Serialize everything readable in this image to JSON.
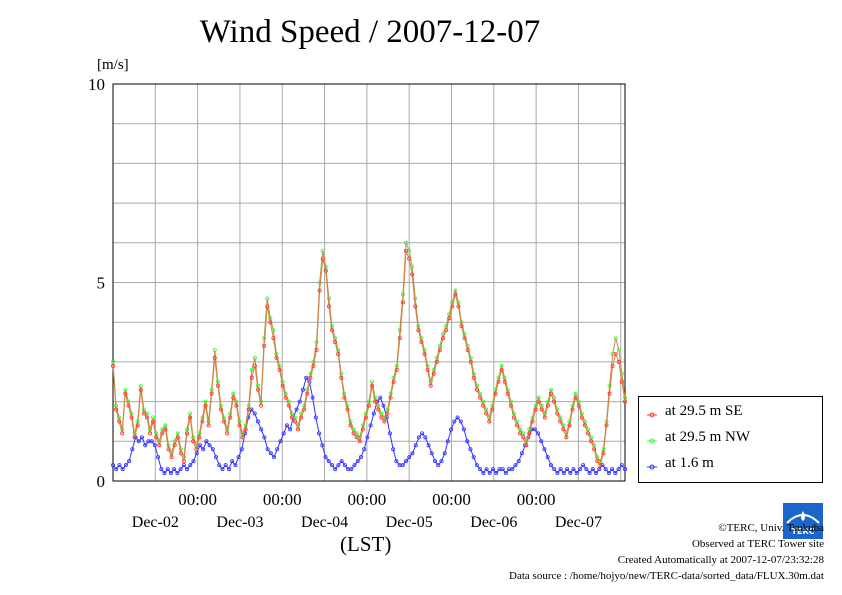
{
  "title": "Wind Speed / 2007-12-07",
  "unit": "[m/s]",
  "xlabel": "(LST)",
  "legend": [
    {
      "label": "at 29.5 m SE",
      "color": "#ff3333"
    },
    {
      "label": "at 29.5 m NW",
      "color": "#33ff33"
    },
    {
      "label": "at 1.6 m",
      "color": "#3333ff"
    }
  ],
  "credits": {
    "copyright": "©TERC, Univ. Tsukuba",
    "site": "Observed at TERC Tower site",
    "created": "Created Automatically at 2007-12-07/23:32:28",
    "source": "Data source : /home/hojyo/new/TERC-data/sorted_data/FLUX.30m.dat"
  },
  "logo_text": "TERC",
  "chart_data": {
    "type": "line",
    "ylim": [
      0,
      10
    ],
    "yticks": [
      0,
      5,
      10
    ],
    "x_time_labels": [
      "00:00",
      "00:00",
      "00:00",
      "00:00",
      "00:00"
    ],
    "x_date_labels": [
      "Dec-02",
      "Dec-03",
      "Dec-04",
      "Dec-05",
      "Dec-06",
      "Dec-07"
    ],
    "x_range_days": [
      0,
      6.05
    ],
    "series": [
      {
        "name": "at 29.5 m SE",
        "color": "#ff3333",
        "values": [
          2.9,
          1.8,
          1.5,
          1.2,
          2.2,
          1.9,
          1.6,
          1.1,
          1.4,
          2.3,
          1.7,
          1.6,
          1.2,
          1.5,
          1.1,
          0.9,
          1.2,
          1.3,
          0.8,
          0.6,
          0.9,
          1.1,
          0.7,
          0.5,
          1.2,
          1.6,
          1.0,
          0.8,
          1.1,
          1.5,
          1.9,
          1.4,
          2.2,
          3.1,
          2.4,
          1.8,
          1.5,
          1.2,
          1.6,
          2.1,
          1.9,
          1.4,
          1.1,
          1.3,
          1.8,
          2.6,
          2.9,
          2.3,
          1.9,
          3.4,
          4.4,
          4.0,
          3.6,
          3.1,
          2.8,
          2.4,
          2.1,
          1.9,
          1.6,
          1.5,
          1.3,
          1.6,
          1.8,
          2.2,
          2.6,
          2.9,
          3.3,
          4.8,
          5.6,
          5.3,
          4.4,
          3.8,
          3.5,
          3.2,
          2.6,
          2.1,
          1.8,
          1.4,
          1.2,
          1.1,
          1.0,
          1.3,
          1.6,
          1.9,
          2.4,
          2.0,
          1.8,
          1.6,
          1.5,
          1.7,
          2.1,
          2.5,
          2.8,
          3.6,
          4.5,
          5.8,
          5.6,
          5.2,
          4.4,
          3.8,
          3.5,
          3.2,
          2.8,
          2.4,
          2.7,
          3.0,
          3.3,
          3.6,
          3.8,
          4.1,
          4.4,
          4.7,
          4.4,
          3.9,
          3.6,
          3.3,
          3.0,
          2.6,
          2.3,
          2.1,
          1.9,
          1.7,
          1.5,
          1.8,
          2.2,
          2.5,
          2.8,
          2.5,
          2.2,
          1.9,
          1.6,
          1.4,
          1.2,
          1.1,
          0.9,
          1.2,
          1.5,
          1.8,
          2.0,
          1.8,
          1.6,
          1.9,
          2.2,
          2.0,
          1.7,
          1.5,
          1.3,
          1.1,
          1.4,
          1.8,
          2.1,
          1.9,
          1.6,
          1.4,
          1.2,
          1.0,
          0.8,
          0.5,
          0.4,
          0.7,
          1.4,
          2.2,
          2.9,
          3.2,
          3.0,
          2.5,
          2.0
        ]
      },
      {
        "name": "at 29.5 m NW",
        "color": "#33ff33",
        "values": [
          3.0,
          1.9,
          1.6,
          1.3,
          2.3,
          2.0,
          1.7,
          1.2,
          1.5,
          2.4,
          1.8,
          1.7,
          1.3,
          1.6,
          1.2,
          1.0,
          1.3,
          1.4,
          0.9,
          0.7,
          1.0,
          1.2,
          0.8,
          0.6,
          1.3,
          1.7,
          1.1,
          0.9,
          1.2,
          1.6,
          2.0,
          1.5,
          2.3,
          3.3,
          2.5,
          1.9,
          1.6,
          1.3,
          1.7,
          2.2,
          2.0,
          1.5,
          1.2,
          1.4,
          1.9,
          2.8,
          3.1,
          2.4,
          2.0,
          3.6,
          4.6,
          4.1,
          3.8,
          3.2,
          2.9,
          2.5,
          2.2,
          2.0,
          1.7,
          1.6,
          1.4,
          1.7,
          1.9,
          2.3,
          2.7,
          3.0,
          3.5,
          5.0,
          5.8,
          5.4,
          4.6,
          3.9,
          3.6,
          3.3,
          2.7,
          2.2,
          1.9,
          1.5,
          1.3,
          1.2,
          1.1,
          1.4,
          1.7,
          2.0,
          2.5,
          2.1,
          1.9,
          1.7,
          1.6,
          1.8,
          2.2,
          2.6,
          2.9,
          3.8,
          4.7,
          6.0,
          5.8,
          5.4,
          4.6,
          3.9,
          3.6,
          3.3,
          2.9,
          2.5,
          2.8,
          3.1,
          3.4,
          3.7,
          3.9,
          4.2,
          4.5,
          4.8,
          4.5,
          4.0,
          3.7,
          3.4,
          3.1,
          2.7,
          2.4,
          2.2,
          2.0,
          1.8,
          1.6,
          1.9,
          2.3,
          2.6,
          2.9,
          2.6,
          2.3,
          2.0,
          1.7,
          1.5,
          1.3,
          1.2,
          1.0,
          1.3,
          1.6,
          1.9,
          2.1,
          1.9,
          1.7,
          2.0,
          2.3,
          2.1,
          1.8,
          1.6,
          1.4,
          1.2,
          1.5,
          1.9,
          2.2,
          2.0,
          1.7,
          1.5,
          1.3,
          1.1,
          0.9,
          0.6,
          0.5,
          0.8,
          1.5,
          2.4,
          3.2,
          3.6,
          3.3,
          2.7,
          2.1
        ]
      },
      {
        "name": "at 1.6 m",
        "color": "#3333ff",
        "values": [
          0.4,
          0.3,
          0.4,
          0.3,
          0.4,
          0.5,
          0.8,
          1.1,
          1.0,
          1.1,
          0.9,
          1.0,
          1.0,
          0.9,
          0.6,
          0.3,
          0.2,
          0.3,
          0.2,
          0.3,
          0.2,
          0.3,
          0.4,
          0.3,
          0.4,
          0.5,
          0.7,
          0.9,
          0.8,
          1.0,
          0.9,
          0.8,
          0.6,
          0.4,
          0.3,
          0.4,
          0.3,
          0.5,
          0.4,
          0.6,
          0.8,
          1.2,
          1.6,
          1.8,
          1.7,
          1.5,
          1.3,
          1.1,
          0.8,
          0.7,
          0.6,
          0.8,
          1.0,
          1.2,
          1.4,
          1.3,
          1.6,
          1.8,
          2.0,
          2.3,
          2.6,
          2.5,
          2.1,
          1.6,
          1.2,
          0.9,
          0.6,
          0.5,
          0.4,
          0.3,
          0.4,
          0.5,
          0.4,
          0.3,
          0.3,
          0.4,
          0.5,
          0.6,
          0.8,
          1.1,
          1.4,
          1.7,
          2.0,
          2.1,
          1.9,
          1.6,
          1.2,
          0.8,
          0.5,
          0.4,
          0.4,
          0.5,
          0.6,
          0.7,
          0.9,
          1.1,
          1.2,
          1.1,
          0.9,
          0.7,
          0.5,
          0.4,
          0.5,
          0.7,
          1.0,
          1.3,
          1.5,
          1.6,
          1.5,
          1.3,
          1.0,
          0.8,
          0.6,
          0.4,
          0.3,
          0.2,
          0.3,
          0.2,
          0.3,
          0.2,
          0.3,
          0.3,
          0.2,
          0.3,
          0.3,
          0.4,
          0.5,
          0.7,
          0.9,
          1.1,
          1.3,
          1.3,
          1.2,
          1.0,
          0.8,
          0.6,
          0.4,
          0.3,
          0.2,
          0.3,
          0.2,
          0.3,
          0.2,
          0.3,
          0.2,
          0.3,
          0.4,
          0.3,
          0.2,
          0.3,
          0.2,
          0.3,
          0.4,
          0.3,
          0.2,
          0.3,
          0.2,
          0.3,
          0.4,
          0.3
        ]
      }
    ]
  }
}
